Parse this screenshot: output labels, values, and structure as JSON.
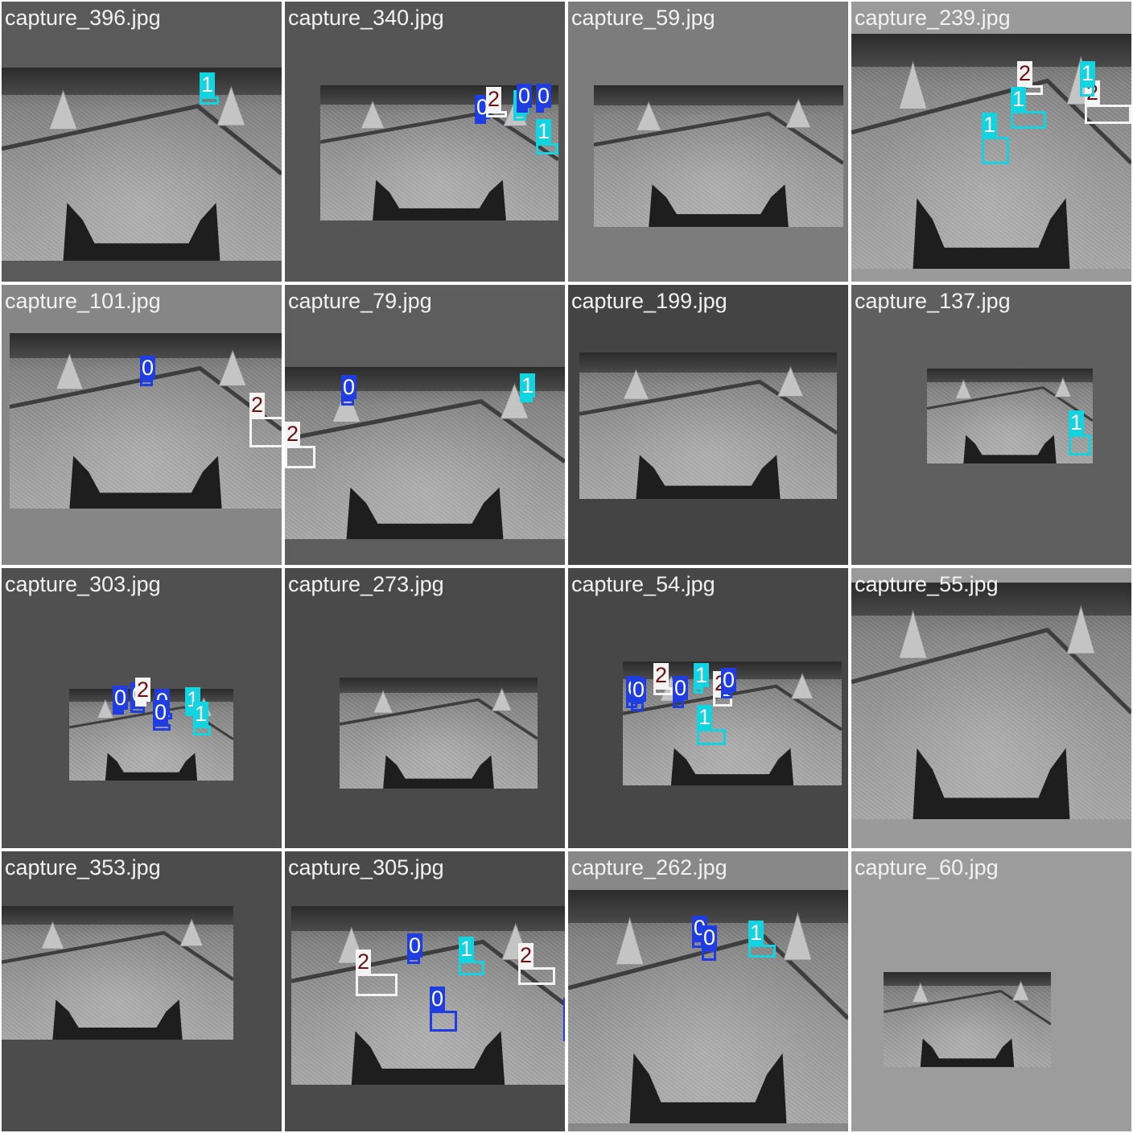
{
  "colors": {
    "class0": "#1f3de0",
    "class1": "#12d4e0",
    "class2": "#f4f4f4",
    "label2_text": "#6b1010"
  },
  "tiles": [
    {
      "title": "capture_396.jpg",
      "bg": "#5a5a5a",
      "detections": [
        {
          "cls": "1"
        }
      ]
    },
    {
      "title": "capture_340.jpg",
      "bg": "#555555",
      "detections": [
        {
          "cls": "0"
        },
        {
          "cls": "2"
        },
        {
          "cls": "1"
        },
        {
          "cls": "0"
        },
        {
          "cls": "0"
        },
        {
          "cls": "1"
        }
      ]
    },
    {
      "title": "capture_59.jpg",
      "bg": "#7c7c7c",
      "detections": []
    },
    {
      "title": "capture_239.jpg",
      "bg": "#9a9a9a",
      "detections": [
        {
          "cls": "2"
        },
        {
          "cls": "1"
        },
        {
          "cls": "1"
        },
        {
          "cls": "2"
        },
        {
          "cls": "1"
        }
      ]
    },
    {
      "title": "capture_101.jpg",
      "bg": "#868686",
      "detections": [
        {
          "cls": "0"
        },
        {
          "cls": "2"
        }
      ]
    },
    {
      "title": "capture_79.jpg",
      "bg": "#5d5d5d",
      "detections": [
        {
          "cls": "0"
        },
        {
          "cls": "1"
        },
        {
          "cls": "2"
        }
      ]
    },
    {
      "title": "capture_199.jpg",
      "bg": "#444444",
      "detections": []
    },
    {
      "title": "capture_137.jpg",
      "bg": "#5f5f5f",
      "detections": [
        {
          "cls": "1"
        }
      ]
    },
    {
      "title": "capture_303.jpg",
      "bg": "#505050",
      "detections": [
        {
          "cls": "0"
        },
        {
          "cls": "0"
        },
        {
          "cls": "2"
        },
        {
          "cls": "0"
        },
        {
          "cls": "0"
        },
        {
          "cls": "1"
        },
        {
          "cls": "1"
        }
      ]
    },
    {
      "title": "capture_273.jpg",
      "bg": "#4a4a4a",
      "detections": []
    },
    {
      "title": "capture_54.jpg",
      "bg": "#474747",
      "detections": [
        {
          "cls": "0"
        },
        {
          "cls": "0"
        },
        {
          "cls": "2"
        },
        {
          "cls": "0"
        },
        {
          "cls": "1"
        },
        {
          "cls": "2"
        },
        {
          "cls": "0"
        },
        {
          "cls": "1"
        }
      ]
    },
    {
      "title": "capture_55.jpg",
      "bg": "#9a9a9a",
      "detections": []
    },
    {
      "title": "capture_353.jpg",
      "bg": "#4c4c4c",
      "detections": []
    },
    {
      "title": "capture_305.jpg",
      "bg": "#4a4a4a",
      "detections": [
        {
          "cls": "2"
        },
        {
          "cls": "0"
        },
        {
          "cls": "1"
        },
        {
          "cls": "2"
        },
        {
          "cls": "0"
        },
        {
          "cls": "0"
        }
      ]
    },
    {
      "title": "capture_262.jpg",
      "bg": "#888888",
      "detections": [
        {
          "cls": "0"
        },
        {
          "cls": "0"
        },
        {
          "cls": "1"
        }
      ]
    },
    {
      "title": "capture_60.jpg",
      "bg": "#9c9c9c",
      "detections": []
    }
  ]
}
